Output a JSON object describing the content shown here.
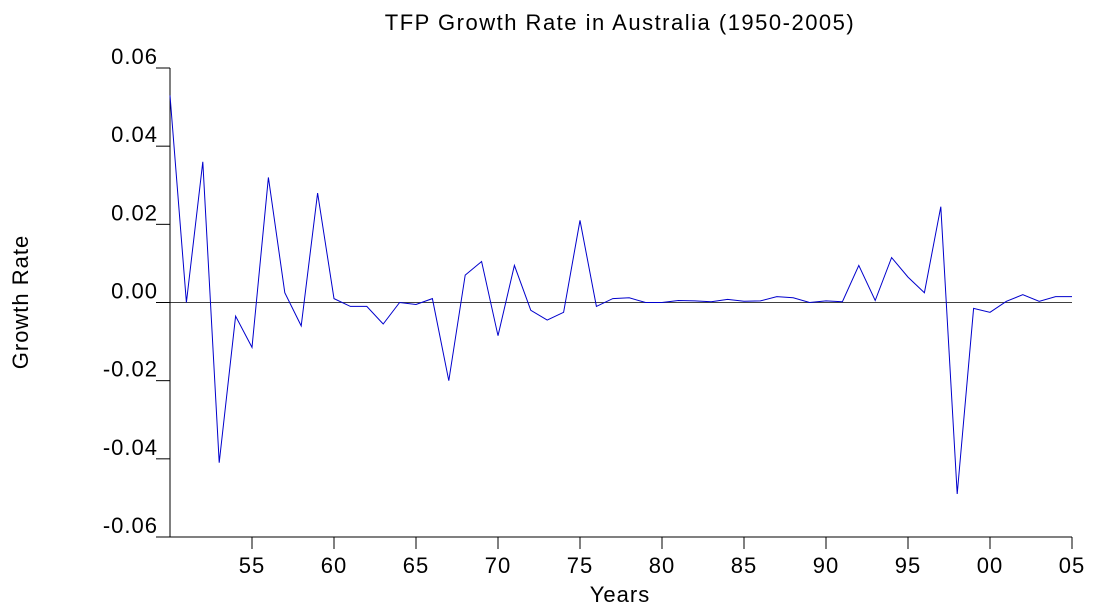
{
  "chart_data": {
    "type": "line",
    "title": "TFP Growth Rate in Australia (1950-2005)",
    "x_label": "Years",
    "y_label": "Growth Rate",
    "x": [
      1950,
      1951,
      1952,
      1953,
      1954,
      1955,
      1956,
      1957,
      1958,
      1959,
      1960,
      1961,
      1962,
      1963,
      1964,
      1965,
      1966,
      1967,
      1968,
      1969,
      1970,
      1971,
      1972,
      1973,
      1974,
      1975,
      1976,
      1977,
      1978,
      1979,
      1980,
      1981,
      1982,
      1983,
      1984,
      1985,
      1986,
      1987,
      1988,
      1989,
      1990,
      1991,
      1992,
      1993,
      1994,
      1995,
      1996,
      1997,
      1998,
      1999,
      2000,
      2001,
      2002,
      2003,
      2004,
      2005
    ],
    "series": [
      {
        "name": "TFP Growth Rate",
        "color": "#0000cc",
        "values": [
          0.053,
          0.0,
          0.036,
          -0.041,
          -0.0035,
          -0.0115,
          0.032,
          0.0025,
          -0.006,
          0.028,
          0.001,
          -0.001,
          -0.001,
          -0.0055,
          0.0,
          -0.0005,
          0.001,
          -0.02,
          0.007,
          0.0105,
          -0.0085,
          0.0095,
          -0.002,
          -0.0045,
          -0.0025,
          0.021,
          -0.001,
          0.001,
          0.0012,
          0.0,
          0.0,
          0.0005,
          0.0004,
          0.0002,
          0.0008,
          0.0003,
          0.0004,
          0.0015,
          0.0012,
          0.0,
          0.0004,
          0.0002,
          0.0095,
          0.0005,
          0.0115,
          0.0065,
          0.0025,
          0.0245,
          -0.049,
          -0.0015,
          -0.0025,
          0.0003,
          0.002,
          0.0003,
          0.0015,
          0.0015
        ]
      }
    ],
    "xlim": [
      1950,
      2005
    ],
    "xticks": [
      {
        "value": 1955,
        "label": "55"
      },
      {
        "value": 1960,
        "label": "60"
      },
      {
        "value": 1965,
        "label": "65"
      },
      {
        "value": 1970,
        "label": "70"
      },
      {
        "value": 1975,
        "label": "75"
      },
      {
        "value": 1980,
        "label": "80"
      },
      {
        "value": 1985,
        "label": "85"
      },
      {
        "value": 1990,
        "label": "90"
      },
      {
        "value": 1995,
        "label": "95"
      },
      {
        "value": 2000,
        "label": "00"
      },
      {
        "value": 2005,
        "label": "05"
      }
    ],
    "ylim": [
      -0.06,
      0.06
    ],
    "yticks": [
      -0.06,
      -0.04,
      -0.02,
      {
        "value": 0,
        "label": "0.00"
      },
      0.02,
      0.04,
      0.06
    ],
    "grid": false
  }
}
